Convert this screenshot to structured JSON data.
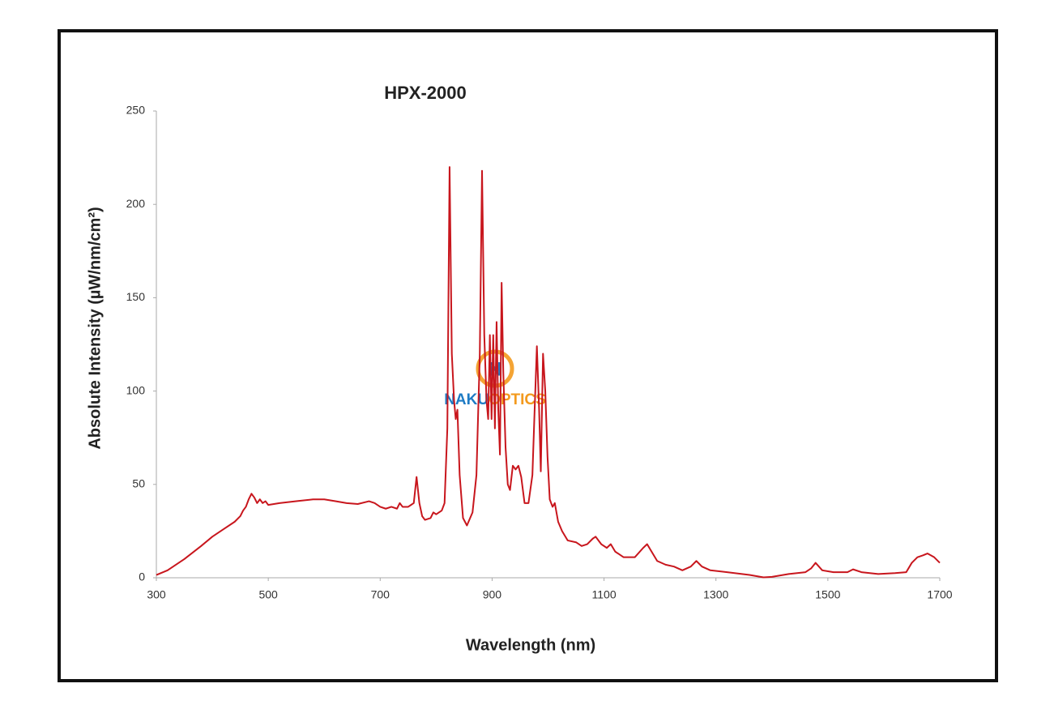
{
  "chart_data": {
    "type": "line",
    "title": "HPX-2000",
    "xlabel": "Wavelength (nm)",
    "ylabel": "Absolute Intensity  (µW/nm/cm²)",
    "x": [
      300,
      320,
      350,
      380,
      400,
      420,
      440,
      450,
      455,
      460,
      465,
      470,
      475,
      480,
      485,
      490,
      495,
      500,
      520,
      550,
      580,
      600,
      620,
      640,
      660,
      680,
      690,
      700,
      710,
      720,
      730,
      735,
      740,
      750,
      760,
      765,
      770,
      775,
      780,
      790,
      795,
      800,
      810,
      815,
      820,
      824,
      828,
      832,
      835,
      838,
      842,
      848,
      855,
      865,
      872,
      878,
      882,
      886,
      890,
      893,
      896,
      899,
      902,
      905,
      908,
      911,
      914,
      917,
      920,
      924,
      928,
      932,
      937,
      942,
      947,
      952,
      958,
      965,
      972,
      976,
      980,
      984,
      987,
      991,
      995,
      999,
      1003,
      1008,
      1012,
      1018,
      1025,
      1035,
      1050,
      1060,
      1070,
      1080,
      1085,
      1095,
      1105,
      1112,
      1120,
      1135,
      1155,
      1170,
      1177,
      1185,
      1195,
      1210,
      1225,
      1240,
      1255,
      1265,
      1275,
      1290,
      1320,
      1360,
      1385,
      1400,
      1430,
      1460,
      1470,
      1478,
      1490,
      1510,
      1535,
      1545,
      1560,
      1590,
      1620,
      1640,
      1650,
      1660,
      1670,
      1678,
      1690,
      1700
    ],
    "values": [
      1.5,
      4,
      10,
      17,
      22,
      26,
      30,
      33,
      36,
      38,
      42,
      45,
      43,
      40,
      42,
      40,
      41,
      39,
      40,
      41,
      42,
      42,
      41,
      40,
      39.5,
      41,
      40,
      38,
      37,
      38,
      37,
      40,
      38,
      38,
      40,
      54,
      40,
      33,
      31,
      32,
      35,
      34,
      36,
      40,
      80,
      220,
      120,
      95,
      85,
      90,
      55,
      32,
      28,
      35,
      55,
      120,
      218,
      130,
      95,
      85,
      130,
      85,
      130,
      80,
      137,
      90,
      66,
      158,
      110,
      70,
      50,
      47,
      60,
      58,
      60,
      54,
      40,
      40,
      55,
      90,
      124,
      90,
      57,
      120,
      100,
      65,
      42,
      38,
      40,
      30,
      25,
      20,
      19,
      17,
      18,
      21,
      22,
      18,
      16,
      18,
      14,
      11,
      11,
      16,
      18,
      14,
      9,
      7,
      6,
      4,
      6,
      9,
      6,
      4,
      3,
      1.5,
      0.2,
      0.5,
      2,
      3,
      5,
      8,
      4,
      3,
      3,
      4.5,
      3,
      2,
      2.5,
      3,
      8,
      11,
      12,
      13,
      11,
      8
    ],
    "color": "#c8161d",
    "xlim": [
      300,
      1700
    ],
    "xticks": [
      300,
      500,
      700,
      900,
      1100,
      1300,
      1500,
      1700
    ],
    "ylim": [
      0,
      250
    ],
    "yticks": [
      0,
      50,
      100,
      150,
      200,
      250
    ],
    "grid": false
  },
  "watermark": {
    "logo": "N",
    "parts": [
      "NAKU",
      "OPTICS"
    ]
  }
}
